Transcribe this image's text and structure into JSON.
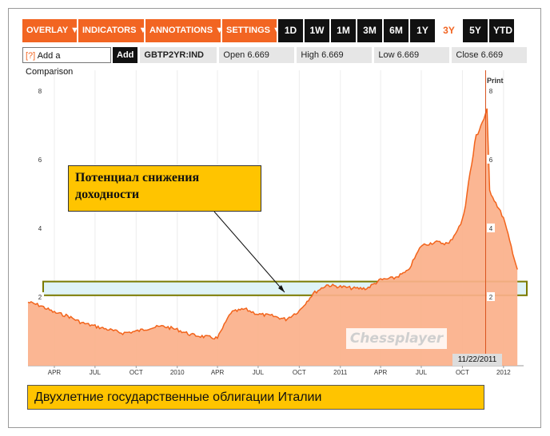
{
  "toolbar": {
    "menus": [
      "OVERLAY ▼",
      "INDICATORS ▼",
      "ANNOTATIONS ▼",
      "SETTINGS ▼"
    ],
    "ranges": [
      "1D",
      "1W",
      "1M",
      "3M",
      "6M",
      "1Y",
      "3Y",
      "5Y",
      "YTD"
    ],
    "active_range": "3Y"
  },
  "infobar": {
    "compare_q": "[?]",
    "compare_label": "Add a Comparison",
    "add_label": "Add",
    "ticker": "GBTP2YR:IND",
    "open": "Open 6.669",
    "high": "High 6.669",
    "low": "Low 6.669",
    "close": "Close 6.669"
  },
  "print_label": "Print",
  "annotation_text_1": "Потенциал снижения",
  "annotation_text_2": "доходности",
  "caption": "Двухлетние государственные облигации Италии",
  "watermark": "Chessplayer",
  "date_tag": "11/22/2011",
  "colors": {
    "accent": "#f26522",
    "fill": "#fbb08a",
    "line": "#f2641c",
    "band": "#dff3f7",
    "band_border": "#7a7a00",
    "annotation": "#ffc400"
  },
  "chart_data": {
    "type": "area",
    "x_tick_labels": [
      "APR",
      "JUL",
      "OCT",
      "2010",
      "APR",
      "JUL",
      "OCT",
      "2011",
      "APR",
      "JUL",
      "OCT",
      "2012"
    ],
    "y_tick_labels": [
      "2",
      "4",
      "6",
      "8"
    ],
    "ylim": [
      0,
      8.6
    ],
    "series": [
      {
        "x": [
          "2009-02",
          "2009-03",
          "2009-04",
          "2009-05",
          "2009-06",
          "2009-07",
          "2009-08",
          "2009-09",
          "2009-10",
          "2009-11",
          "2009-12",
          "2010-01",
          "2010-02",
          "2010-03",
          "2010-04",
          "2010-05",
          "2010-06",
          "2010-07",
          "2010-08",
          "2010-09",
          "2010-10",
          "2010-11",
          "2010-12",
          "2011-01",
          "2011-02",
          "2011-03",
          "2011-04",
          "2011-05",
          "2011-06",
          "2011-07",
          "2011-08",
          "2011-09",
          "2011-10",
          "2011-11",
          "2011-11-25",
          "2011-12",
          "2012-01",
          "2012-02"
        ],
        "values": [
          1.85,
          1.75,
          1.55,
          1.45,
          1.25,
          1.15,
          1.05,
          0.95,
          1.0,
          1.1,
          1.15,
          1.05,
          0.9,
          0.85,
          0.8,
          1.55,
          1.65,
          1.5,
          1.45,
          1.35,
          1.6,
          2.1,
          2.35,
          2.3,
          2.25,
          2.25,
          2.5,
          2.55,
          2.75,
          3.5,
          3.6,
          3.55,
          4.2,
          6.7,
          7.4,
          5.1,
          4.3,
          2.8
        ]
      }
    ],
    "highlight_band": [
      2.05,
      2.45
    ],
    "marker_date": "2011-11-22"
  }
}
